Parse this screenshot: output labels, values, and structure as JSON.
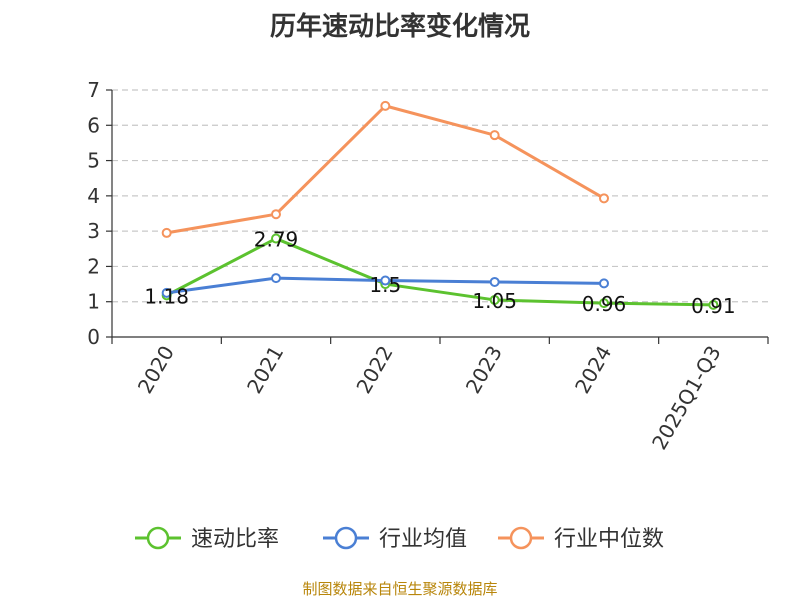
{
  "chart_data": {
    "type": "line",
    "title": "历年速动比率变化情况",
    "categories": [
      "2020",
      "2021",
      "2022",
      "2023",
      "2024",
      "2025Q1-Q3"
    ],
    "ylim": [
      0,
      7
    ],
    "yticks": [
      0,
      1,
      2,
      3,
      4,
      5,
      6,
      7
    ],
    "grid": true,
    "legend_position": "bottom",
    "series": [
      {
        "name": "速动比率",
        "color": "#5cc22f",
        "values": [
          1.18,
          2.79,
          1.5,
          1.05,
          0.96,
          0.91
        ],
        "labels": [
          "1.18",
          "2.79",
          "1.5",
          "1.05",
          "0.96",
          "0.91"
        ]
      },
      {
        "name": "行业均值",
        "color": "#4a7fd4",
        "values": [
          1.25,
          1.67,
          1.6,
          1.56,
          1.52,
          null
        ]
      },
      {
        "name": "行业中位数",
        "color": "#f5935c",
        "values": [
          2.95,
          3.48,
          6.55,
          5.72,
          3.93,
          null
        ]
      }
    ]
  },
  "footer": "制图数据来自恒生聚源数据库"
}
